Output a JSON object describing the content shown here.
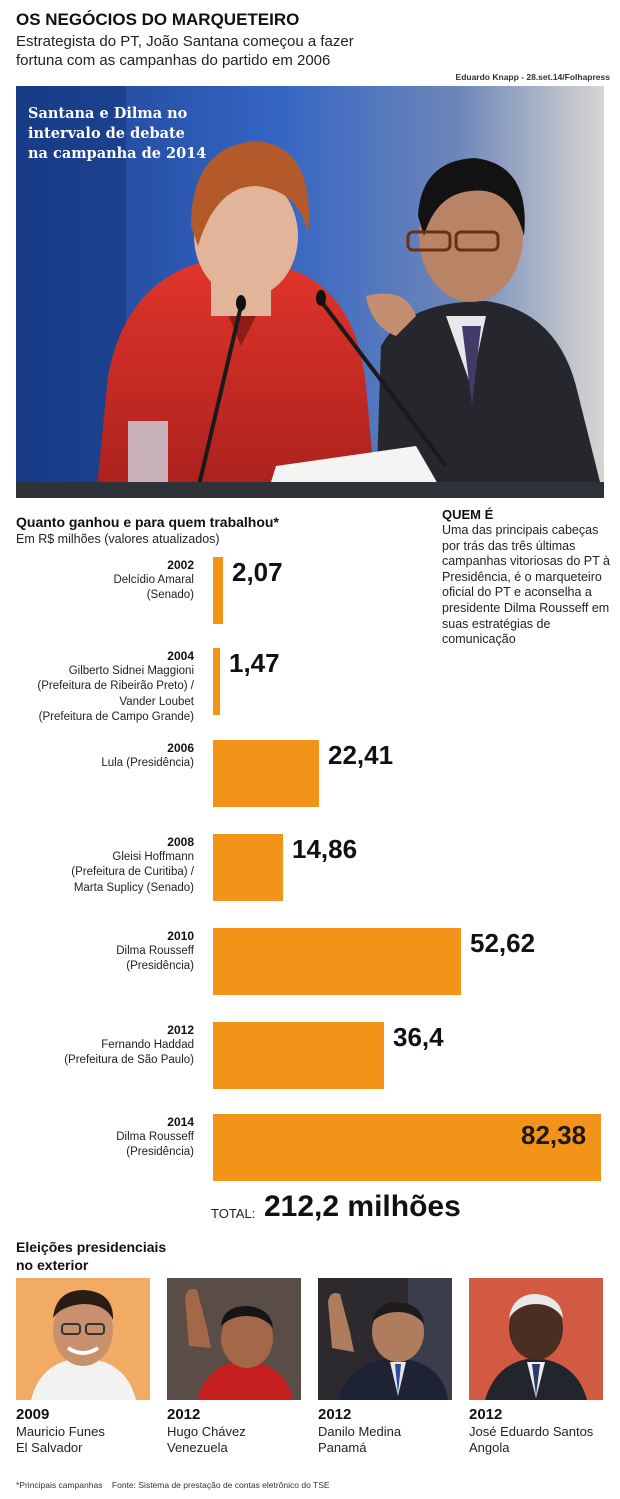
{
  "header": {
    "title": "OS NEGÓCIOS DO MARQUETEIRO",
    "subtitle_line1": "Estrategista do PT, João Santana começou a fazer",
    "subtitle_line2": "fortuna com as campanhas do partido em 2006",
    "photo_credit": "Eduardo Knapp - 28.set.14/Folhapress"
  },
  "main_photo": {
    "caption_line1": "Santana e Dilma no",
    "caption_line2": "intervalo de debate",
    "caption_line3": "na campanha de 2014"
  },
  "quem_e": {
    "title": "QUEM É",
    "text": "Uma das principais cabeças por trás das três últimas campanhas vitoriosas do PT à Presidência, é o marqueteiro oficial do PT e aconselha a presidente Dilma Rousseff em suas estratégias de comunicação"
  },
  "chart_data": {
    "type": "bar",
    "title": "Quanto ganhou e para quem trabalhou*",
    "subtitle": "Em R$ milhões (valores atualizados)",
    "bar_color": "#f39317",
    "xlim": [
      0,
      82.38
    ],
    "categories": [
      {
        "year": "2002",
        "lines": [
          "Delcídio Amaral",
          "(Senado)"
        ],
        "value": 2.07,
        "label": "2,07"
      },
      {
        "year": "2004",
        "lines": [
          "Gilberto Sidnei Maggioni",
          "(Prefeitura de Ribeirão Preto) /",
          "Vander Loubet",
          "(Prefeitura de Campo Grande)"
        ],
        "value": 1.47,
        "label": "1,47"
      },
      {
        "year": "2006",
        "lines": [
          "Lula (Presidência)"
        ],
        "value": 22.41,
        "label": "22,41"
      },
      {
        "year": "2008",
        "lines": [
          "Gleisi Hoffmann",
          "(Prefeitura de Curitiba) /",
          "Marta Suplicy (Senado)"
        ],
        "value": 14.86,
        "label": "14,86"
      },
      {
        "year": "2010",
        "lines": [
          "Dilma Rousseff",
          "(Presidência)"
        ],
        "value": 52.62,
        "label": "52,62"
      },
      {
        "year": "2012",
        "lines": [
          "Fernando Haddad",
          "(Prefeitura de São Paulo)"
        ],
        "value": 36.4,
        "label": "36,4"
      },
      {
        "year": "2014",
        "lines": [
          "Dilma Rousseff",
          "(Presidência)"
        ],
        "value": 82.38,
        "label": "82,38"
      }
    ],
    "total_label": "TOTAL:",
    "total_value": "212,2 milhões"
  },
  "abroad": {
    "title_line1": "Eleições presidenciais",
    "title_line2": "no exterior",
    "items": [
      {
        "year": "2009",
        "name": "Mauricio Funes",
        "country": "El Salvador"
      },
      {
        "year": "2012",
        "name": "Hugo Chávez",
        "country": "Venezuela"
      },
      {
        "year": "2012",
        "name": "Danilo Medina",
        "country": "Panamá"
      },
      {
        "year": "2012",
        "name": "José Eduardo Santos",
        "country": "Angola"
      }
    ]
  },
  "footer": {
    "note": "*Principais campanhas",
    "source": "Fonte: Sistema de prestação de contas eletrônico do TSE"
  }
}
